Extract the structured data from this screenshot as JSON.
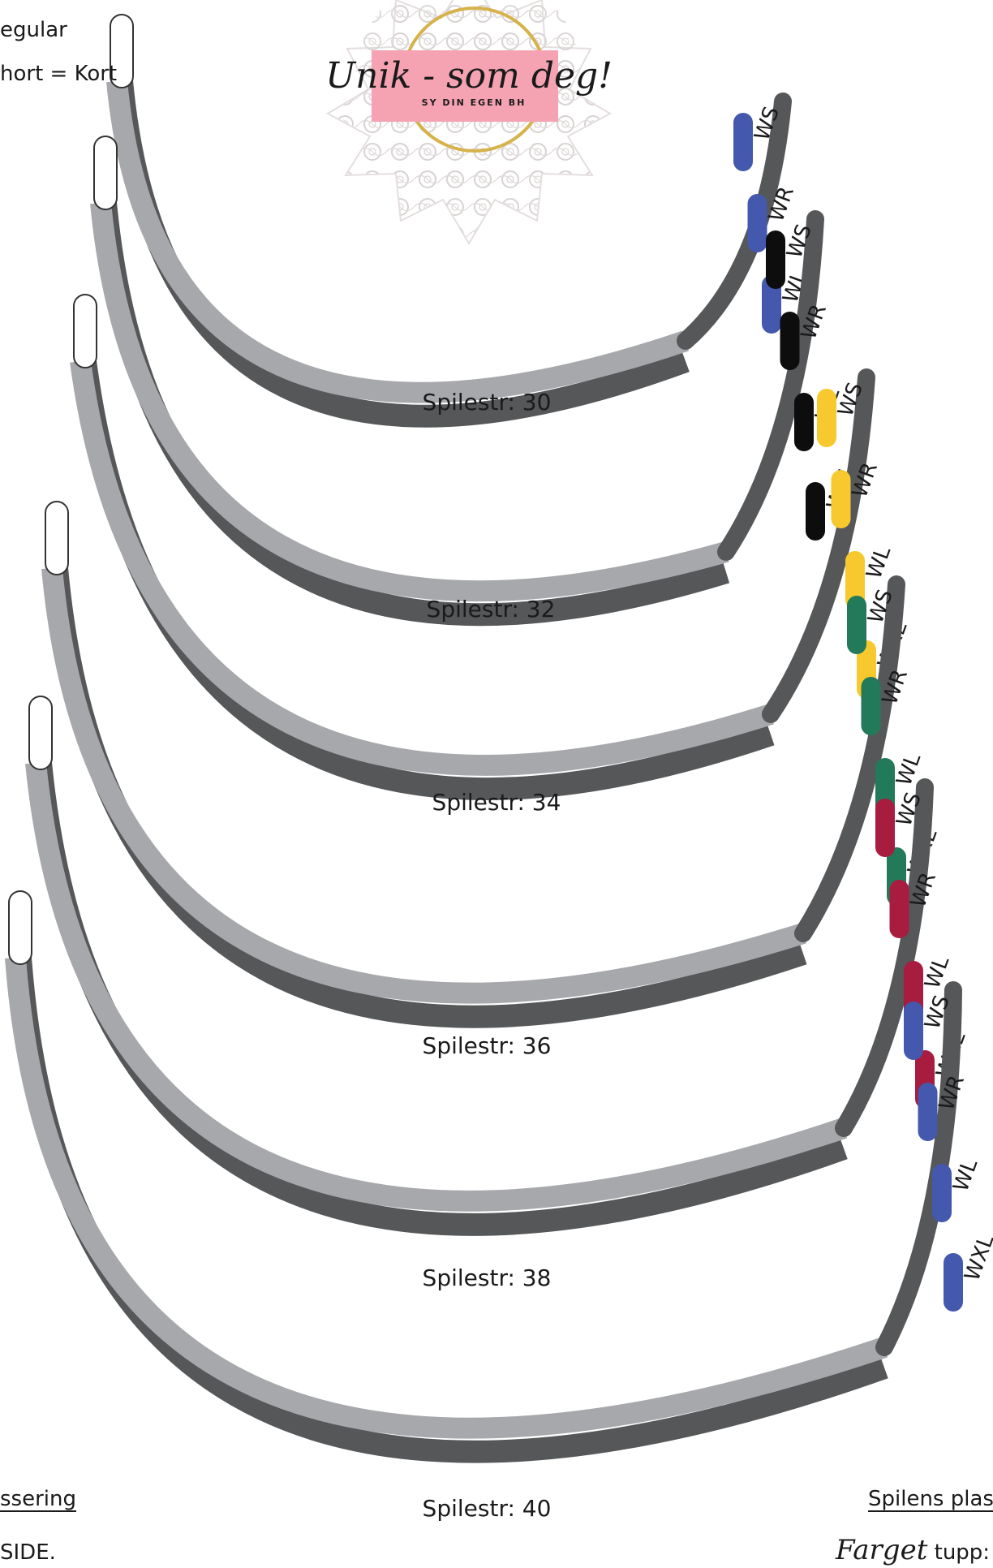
{
  "header": {
    "left_line2": "egular",
    "left_line3": "hort = Kort"
  },
  "logo": {
    "title": "Unik - som deg!",
    "subtitle": "SY DIN EGEN BH"
  },
  "footer": {
    "left_heading": "ssering",
    "left_text": "SIDE.",
    "right_heading": "Spilens plas",
    "right_script": "Farget",
    "right_text": "tupp: F"
  },
  "colors": {
    "blue": "#4458ad",
    "black": "#0d0d0d",
    "yellow": "#f7c92e",
    "green": "#237a5a",
    "red": "#a71c3f",
    "light_band": "#a7a8ab",
    "dark_band": "#555759"
  },
  "wires": [
    {
      "label": "Spilestr: 30",
      "color": "blue",
      "markers": [
        "WS",
        "WR",
        "WL"
      ]
    },
    {
      "label": "Spilestr: 32",
      "color": "black",
      "markers": [
        "WS",
        "WR",
        "WL",
        "WXL"
      ]
    },
    {
      "label": "Spilestr: 34",
      "color": "yellow",
      "markers": [
        "WS",
        "WR",
        "WL",
        "WXL"
      ]
    },
    {
      "label": "Spilestr: 36",
      "color": "green",
      "markers": [
        "WS",
        "WR",
        "WL",
        "WXL"
      ]
    },
    {
      "label": "Spilestr: 38",
      "color": "red",
      "markers": [
        "WS",
        "WR",
        "WL",
        "WXL"
      ]
    },
    {
      "label": "Spilestr: 40",
      "color": "blue",
      "markers": [
        "WS",
        "WR",
        "WL",
        "WXL"
      ]
    }
  ]
}
